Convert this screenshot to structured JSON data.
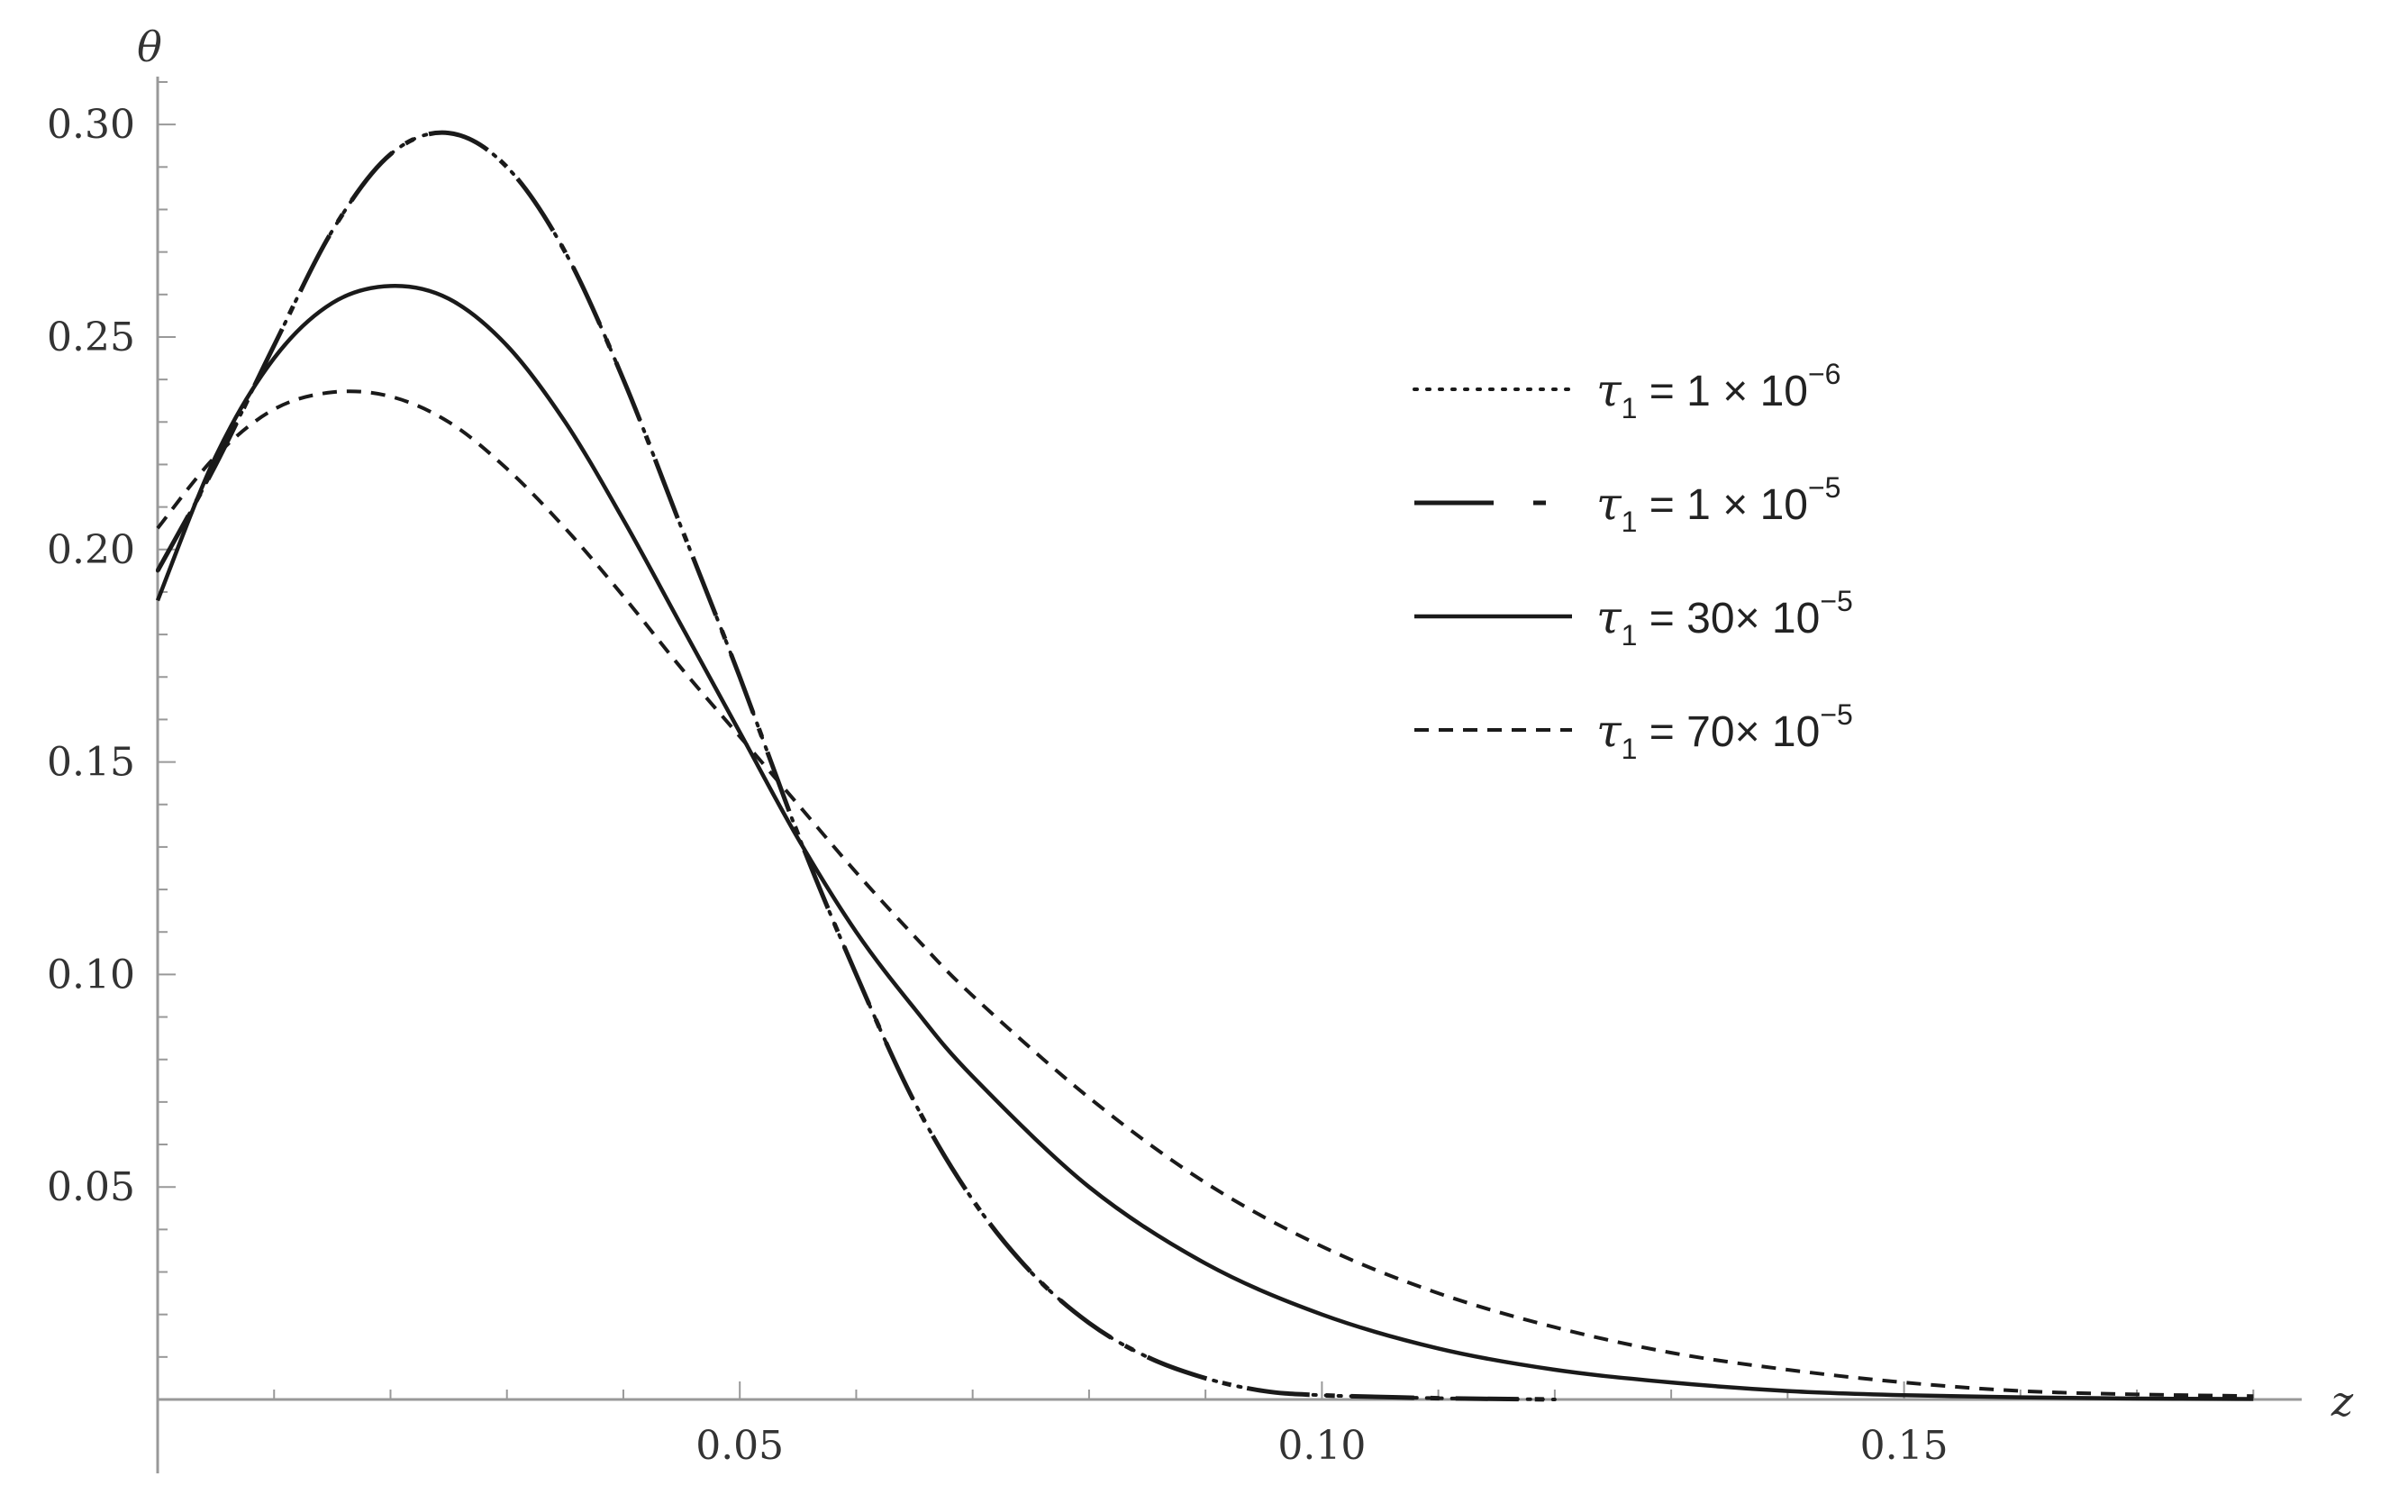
{
  "chart_data": {
    "type": "line",
    "xlabel": "z",
    "ylabel": "θ",
    "xlim": [
      0,
      0.184
    ],
    "ylim": [
      0,
      0.31
    ],
    "xticks": [
      {
        "value": 0.05,
        "label": "0.05"
      },
      {
        "value": 0.1,
        "label": "0.10"
      },
      {
        "value": 0.15,
        "label": "0.15"
      }
    ],
    "yticks": [
      {
        "value": 0.05,
        "label": "0.05"
      },
      {
        "value": 0.1,
        "label": "0.10"
      },
      {
        "value": 0.15,
        "label": "0.15"
      },
      {
        "value": 0.2,
        "label": "0.20"
      },
      {
        "value": 0.25,
        "label": "0.25"
      },
      {
        "value": 0.3,
        "label": "0.30"
      }
    ],
    "grid": false,
    "legend_position": "top-right",
    "series": [
      {
        "name": "τ1 = 1 × 10^-6",
        "legend": {
          "symbol": "τ",
          "sub": "1",
          "rest": " =  1 × 10",
          "exp": "−6"
        },
        "style": "dotted",
        "x": [
          0,
          0.005,
          0.01,
          0.015,
          0.02,
          0.025,
          0.03,
          0.035,
          0.04,
          0.045,
          0.05,
          0.055,
          0.06,
          0.065,
          0.07,
          0.075,
          0.08,
          0.085,
          0.09,
          0.095,
          0.1,
          0.11,
          0.12
        ],
        "y": [
          0.195,
          0.22,
          0.248,
          0.275,
          0.293,
          0.298,
          0.29,
          0.27,
          0.24,
          0.205,
          0.17,
          0.133,
          0.1,
          0.07,
          0.047,
          0.03,
          0.018,
          0.01,
          0.005,
          0.002,
          0.001,
          0.0003,
          0.0
        ]
      },
      {
        "name": "τ1 = 1 × 10^-5",
        "legend": {
          "symbol": "τ",
          "sub": "1",
          "rest": " =  1 × 10",
          "exp": "−5"
        },
        "style": "longdash",
        "x": [
          0,
          0.005,
          0.01,
          0.015,
          0.02,
          0.025,
          0.03,
          0.035,
          0.04,
          0.045,
          0.05,
          0.055,
          0.06,
          0.065,
          0.07,
          0.075,
          0.08,
          0.085,
          0.09,
          0.095,
          0.1,
          0.11,
          0.12
        ],
        "y": [
          0.195,
          0.22,
          0.248,
          0.275,
          0.293,
          0.298,
          0.29,
          0.27,
          0.24,
          0.205,
          0.17,
          0.133,
          0.1,
          0.07,
          0.047,
          0.03,
          0.018,
          0.01,
          0.005,
          0.002,
          0.001,
          0.0003,
          0.0
        ]
      },
      {
        "name": "τ1 = 30× 10^-5",
        "legend": {
          "symbol": "τ",
          "sub": "1",
          "rest": " = 30× 10",
          "exp": "−5"
        },
        "style": "solid",
        "x": [
          0,
          0.005,
          0.01,
          0.015,
          0.02,
          0.025,
          0.03,
          0.035,
          0.04,
          0.045,
          0.05,
          0.055,
          0.06,
          0.065,
          0.07,
          0.08,
          0.09,
          0.1,
          0.11,
          0.12,
          0.13,
          0.14,
          0.15,
          0.16,
          0.17,
          0.18
        ],
        "y": [
          0.188,
          0.222,
          0.245,
          0.258,
          0.262,
          0.259,
          0.248,
          0.23,
          0.207,
          0.182,
          0.157,
          0.132,
          0.11,
          0.092,
          0.076,
          0.05,
          0.032,
          0.02,
          0.012,
          0.007,
          0.004,
          0.002,
          0.001,
          0.0005,
          0.0002,
          0.0001
        ]
      },
      {
        "name": "τ1 = 70× 10^-5",
        "legend": {
          "symbol": "τ",
          "sub": "1",
          "rest": " = 70× 10",
          "exp": "−5"
        },
        "style": "dashed",
        "x": [
          0,
          0.005,
          0.01,
          0.015,
          0.02,
          0.025,
          0.03,
          0.035,
          0.04,
          0.045,
          0.05,
          0.055,
          0.06,
          0.065,
          0.07,
          0.08,
          0.09,
          0.1,
          0.11,
          0.12,
          0.13,
          0.14,
          0.15,
          0.16,
          0.17,
          0.18
        ],
        "y": [
          0.205,
          0.222,
          0.233,
          0.237,
          0.236,
          0.23,
          0.219,
          0.205,
          0.189,
          0.172,
          0.156,
          0.14,
          0.124,
          0.109,
          0.095,
          0.071,
          0.051,
          0.036,
          0.025,
          0.017,
          0.011,
          0.007,
          0.004,
          0.002,
          0.0012,
          0.0008
        ]
      }
    ]
  }
}
